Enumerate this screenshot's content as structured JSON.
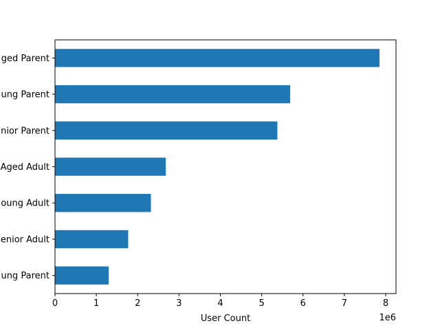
{
  "chart_data": {
    "type": "bar",
    "orientation": "horizontal",
    "categories": [
      "Young Parent",
      "Senior Adult",
      "Young Adult",
      "Middle Aged Adult",
      "Senior Parent",
      "Young Parent",
      "Middle Aged Parent"
    ],
    "category_labels_visible": [
      "ung Parent",
      "enior Adult",
      "oung Adult",
      "Aged Adult",
      "nior Parent",
      "ung Parent",
      "ged Parent"
    ],
    "values": [
      1300000,
      1770000,
      2320000,
      2680000,
      5380000,
      5690000,
      7850000
    ],
    "xlabel": "User Count",
    "x_offset_label": "1e6",
    "xlim": [
      0,
      8250000
    ],
    "xticks": [
      0,
      1000000,
      2000000,
      3000000,
      4000000,
      5000000,
      6000000,
      7000000,
      8000000
    ],
    "xtick_labels": [
      "0",
      "1",
      "2",
      "3",
      "4",
      "5",
      "6",
      "7",
      "8"
    ],
    "grid": false,
    "bar_color": "#1f77b4"
  }
}
